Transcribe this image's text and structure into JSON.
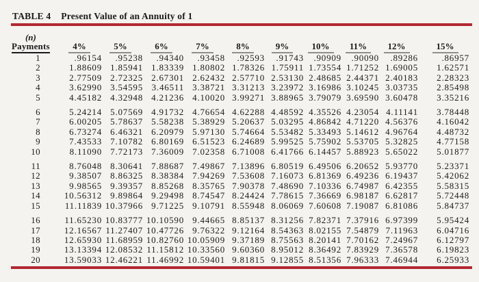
{
  "title": {
    "table_label": "TABLE 4",
    "table_caption": "Present Value of an Annuity of 1"
  },
  "colors": {
    "accent_rule": "#b32832",
    "background": "#f4f3ef",
    "text": "#1a1a1a",
    "header_underline": "#8e8e8e"
  },
  "table": {
    "n_header_top": "(n)",
    "n_header_bottom": "Payments",
    "columns": [
      "4%",
      "5%",
      "6%",
      "7%",
      "8%",
      "9%",
      "10%",
      "11%",
      "12%",
      "15%"
    ],
    "rows": [
      {
        "n": "1",
        "values": [
          ".96154",
          ".95238",
          ".94340",
          ".93458",
          ".92593",
          ".91743",
          ".90909",
          ".90090",
          ".89286",
          ".86957"
        ]
      },
      {
        "n": "2",
        "values": [
          "1.88609",
          "1.85941",
          "1.83339",
          "1.80802",
          "1.78326",
          "1.75911",
          "1.73554",
          "1.71252",
          "1.69005",
          "1.62571"
        ]
      },
      {
        "n": "3",
        "values": [
          "2.77509",
          "2.72325",
          "2.67301",
          "2.62432",
          "2.57710",
          "2.53130",
          "2.48685",
          "2.44371",
          "2.40183",
          "2.28323"
        ]
      },
      {
        "n": "4",
        "values": [
          "3.62990",
          "3.54595",
          "3.46511",
          "3.38721",
          "3.31213",
          "3.23972",
          "3.16986",
          "3.10245",
          "3.03735",
          "2.85498"
        ]
      },
      {
        "n": "5",
        "values": [
          "4.45182",
          "4.32948",
          "4.21236",
          "4.10020",
          "3.99271",
          "3.88965",
          "3.79079",
          "3.69590",
          "3.60478",
          "3.35216"
        ]
      },
      {
        "n": "6",
        "values": [
          "5.24214",
          "5.07569",
          "4.91732",
          "4.76654",
          "4.62288",
          "4.48592",
          "4.35526",
          "4.23054",
          "4.11141",
          "3.78448"
        ]
      },
      {
        "n": "7",
        "values": [
          "6.00205",
          "5.78637",
          "5.58238",
          "5.38929",
          "5.20637",
          "5.03295",
          "4.86842",
          "4.71220",
          "4.56376",
          "4.16042"
        ]
      },
      {
        "n": "8",
        "values": [
          "6.73274",
          "6.46321",
          "6.20979",
          "5.97130",
          "5.74664",
          "5.53482",
          "5.33493",
          "5.14612",
          "4.96764",
          "4.48732"
        ]
      },
      {
        "n": "9",
        "values": [
          "7.43533",
          "7.10782",
          "6.80169",
          "6.51523",
          "6.24689",
          "5.99525",
          "5.75902",
          "5.53705",
          "5.32825",
          "4.77158"
        ]
      },
      {
        "n": "10",
        "values": [
          "8.11090",
          "7.72173",
          "7.36009",
          "7.02358",
          "6.71008",
          "6.41766",
          "6.14457",
          "5.88923",
          "5.65022",
          "5.01877"
        ]
      },
      {
        "n": "11",
        "values": [
          "8.76048",
          "8.30641",
          "7.88687",
          "7.49867",
          "7.13896",
          "6.80519",
          "6.49506",
          "6.20652",
          "5.93770",
          "5.23371"
        ]
      },
      {
        "n": "12",
        "values": [
          "9.38507",
          "8.86325",
          "8.38384",
          "7.94269",
          "7.53608",
          "7.16073",
          "6.81369",
          "6.49236",
          "6.19437",
          "5.42062"
        ]
      },
      {
        "n": "13",
        "values": [
          "9.98565",
          "9.39357",
          "8.85268",
          "8.35765",
          "7.90378",
          "7.48690",
          "7.10336",
          "6.74987",
          "6.42355",
          "5.58315"
        ]
      },
      {
        "n": "14",
        "values": [
          "10.56312",
          "9.89864",
          "9.29498",
          "8.74547",
          "8.24424",
          "7.78615",
          "7.36669",
          "6.98187",
          "6.62817",
          "5.72448"
        ]
      },
      {
        "n": "15",
        "values": [
          "11.11839",
          "10.37966",
          "9.71225",
          "9.10791",
          "8.55948",
          "8.06069",
          "7.60608",
          "7.19087",
          "6.81086",
          "5.84737"
        ]
      },
      {
        "n": "16",
        "values": [
          "11.65230",
          "10.83777",
          "10.10590",
          "9.44665",
          "8.85137",
          "8.31256",
          "7.82371",
          "7.37916",
          "6.97399",
          "5.95424"
        ]
      },
      {
        "n": "17",
        "values": [
          "12.16567",
          "11.27407",
          "10.47726",
          "9.76322",
          "9.12164",
          "8.54363",
          "8.02155",
          "7.54879",
          "7.11963",
          "6.04716"
        ]
      },
      {
        "n": "18",
        "values": [
          "12.65930",
          "11.68959",
          "10.82760",
          "10.05909",
          "9.37189",
          "8.75563",
          "8.20141",
          "7.70162",
          "7.24967",
          "6.12797"
        ]
      },
      {
        "n": "19",
        "values": [
          "13.13394",
          "12.08532",
          "11.15812",
          "10.33560",
          "9.60360",
          "8.95012",
          "8.36492",
          "7.83929",
          "7.36578",
          "6.19823"
        ]
      },
      {
        "n": "20",
        "values": [
          "13.59033",
          "12.46221",
          "11.46992",
          "10.59401",
          "9.81815",
          "9.12855",
          "8.51356",
          "7.96333",
          "7.46944",
          "6.25933"
        ]
      }
    ]
  }
}
